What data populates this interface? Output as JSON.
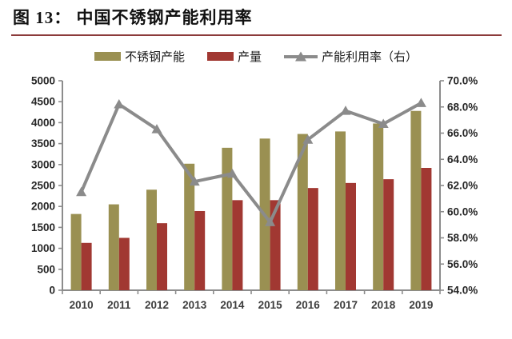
{
  "header": {
    "title": "图 13：  中国不锈钢产能利用率"
  },
  "legend": {
    "items": [
      {
        "label": "不锈钢产能",
        "marker": "bar-swatch"
      },
      {
        "label": "产量",
        "marker": "bar-swatch"
      },
      {
        "label": "产能利用率（右）",
        "marker": "line-triangle-marker"
      }
    ]
  },
  "colors": {
    "capacity_bar": "#9A9052",
    "production_bar": "#A13832",
    "utilization_line": "#8B8B8B",
    "title_rule": "#8C3B3B",
    "axis_line": "#8C8C8C",
    "tick_label": "#262626"
  },
  "chart_data": {
    "type": "bar+line",
    "title": "中国不锈钢产能利用率",
    "categories": [
      "2010",
      "2011",
      "2012",
      "2013",
      "2014",
      "2015",
      "2016",
      "2017",
      "2018",
      "2019"
    ],
    "series": [
      {
        "name": "不锈钢产能",
        "type": "bar",
        "axis": "left",
        "color": "#9A9052",
        "values": [
          1820,
          2050,
          2400,
          3020,
          3400,
          3620,
          3730,
          3790,
          3980,
          4280
        ]
      },
      {
        "name": "产量",
        "type": "bar",
        "axis": "left",
        "color": "#A13832",
        "values": [
          1130,
          1250,
          1600,
          1890,
          2150,
          2150,
          2440,
          2560,
          2650,
          2920
        ]
      },
      {
        "name": "产能利用率（右）",
        "type": "line",
        "axis": "right",
        "color": "#8B8B8B",
        "values": [
          61.5,
          68.2,
          66.3,
          62.3,
          62.9,
          59.2,
          65.5,
          67.7,
          66.7,
          68.3
        ]
      }
    ],
    "left_axis": {
      "min": 0,
      "max": 5000,
      "step": 500,
      "tick_labels": [
        "0",
        "500",
        "1000",
        "1500",
        "2000",
        "2500",
        "3000",
        "3500",
        "4000",
        "4500",
        "5000"
      ]
    },
    "right_axis": {
      "min": 54,
      "max": 70,
      "step": 2,
      "tick_labels": [
        "54.0%",
        "56.0%",
        "58.0%",
        "60.0%",
        "62.0%",
        "64.0%",
        "66.0%",
        "68.0%",
        "70.0%"
      ]
    },
    "grid": false,
    "legend_position": "top"
  }
}
